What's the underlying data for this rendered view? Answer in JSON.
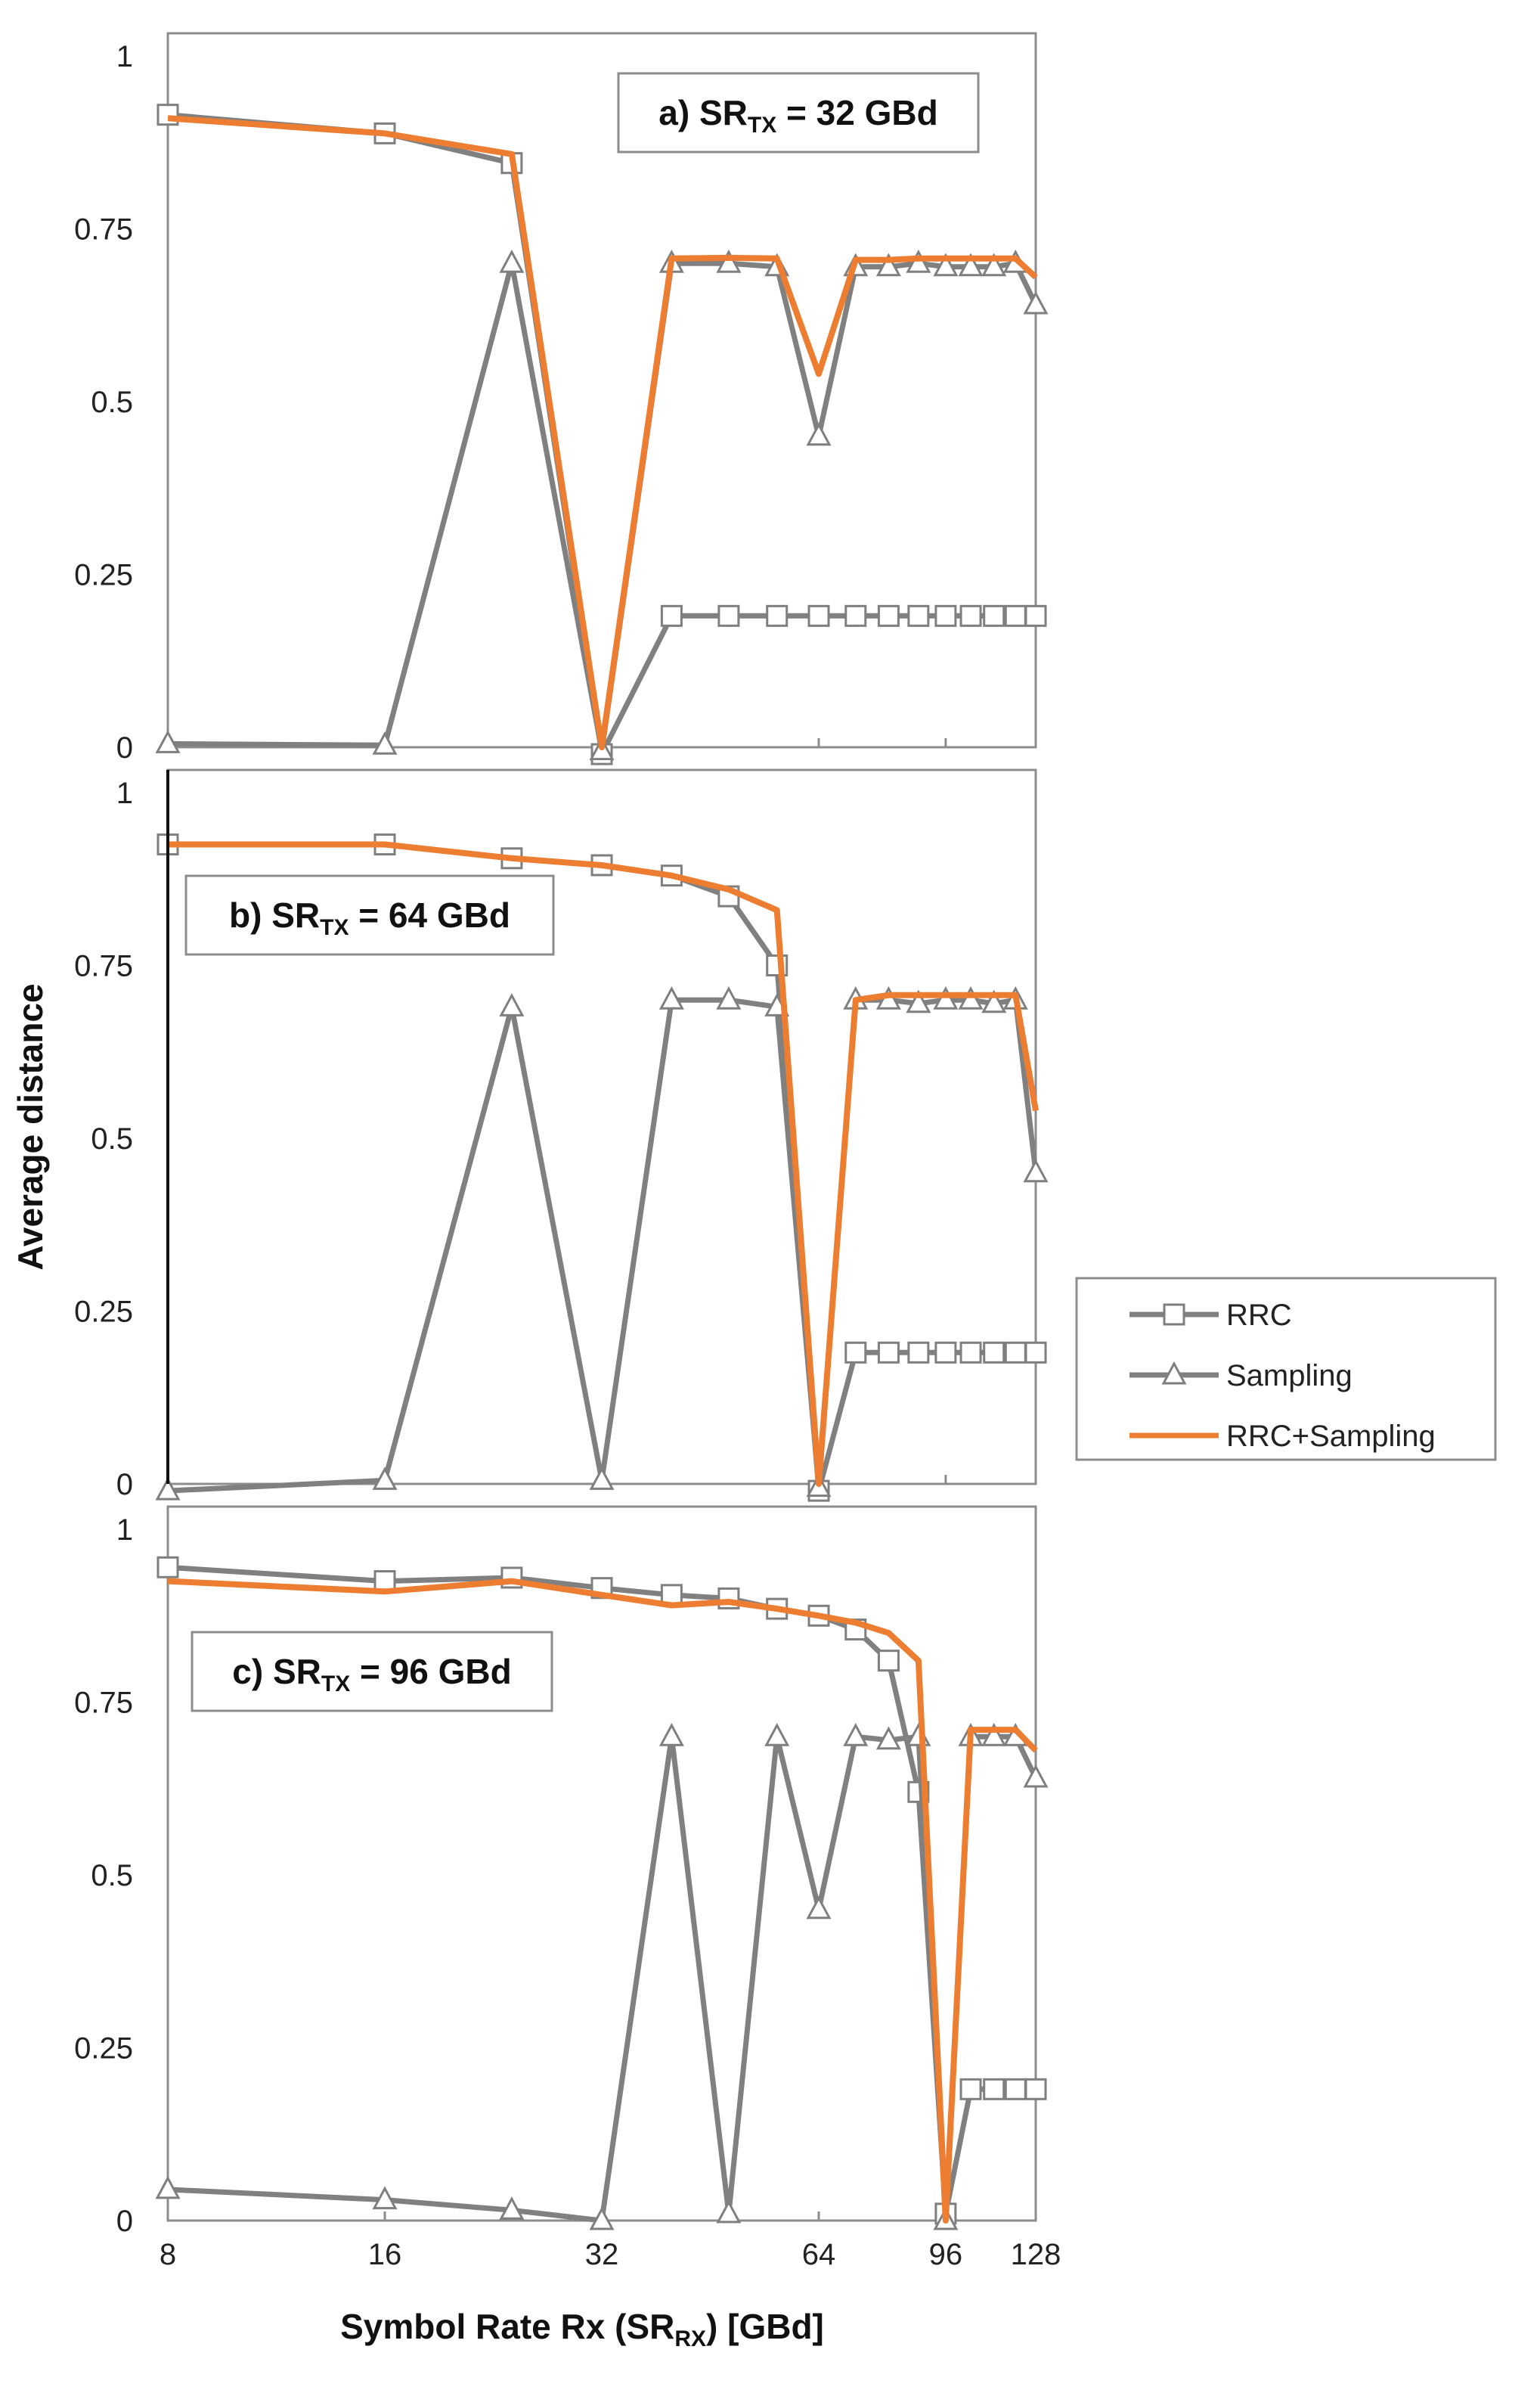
{
  "chart_data": {
    "type": "line",
    "ylabel": "Average distance",
    "xlabel": {
      "main": "Symbol Rate Rx (SR",
      "sub": "RX",
      "tail": ") [GBd]"
    },
    "x_ticks": [
      8,
      16,
      32,
      64,
      96,
      128
    ],
    "y_ticks": [
      {
        "value": 0,
        "label": "0"
      },
      {
        "value": 0.25,
        "label": "0.25"
      },
      {
        "value": 0.5,
        "label": "0.5"
      },
      {
        "value": 0.75,
        "label": "0.75"
      },
      {
        "value": 1,
        "label": "1"
      }
    ],
    "x_scale": "log2",
    "xlim": [
      8,
      128
    ],
    "ylim": [
      0,
      1
    ],
    "legend": {
      "placement": "right",
      "items": [
        {
          "name": "RRC",
          "marker": "square",
          "color": "#808080"
        },
        {
          "name": "Sampling",
          "marker": "triangle",
          "color": "#808080"
        },
        {
          "name": "RRC+Sampling",
          "marker": "none",
          "color": "#ed7d31"
        }
      ]
    },
    "panels": [
      {
        "title": {
          "prefix": "a) SR",
          "sub": "TX",
          "suffix": " = 32 GBd"
        },
        "title_placement": "top-right",
        "series": [
          {
            "name": "RRC",
            "marker": "square",
            "color": "#808080",
            "x": [
              8,
              16,
              24,
              32,
              40,
              48,
              56,
              64,
              72,
              80,
              88,
              96,
              104,
              112,
              120,
              128
            ],
            "y": [
              0.915,
              0.888,
              0.845,
              -0.01,
              0.19,
              0.19,
              0.19,
              0.19,
              0.19,
              0.19,
              0.19,
              0.19,
              0.19,
              0.19,
              0.19,
              0.19
            ]
          },
          {
            "name": "Sampling",
            "marker": "triangle",
            "color": "#808080",
            "x": [
              8,
              16,
              24,
              32,
              40,
              48,
              56,
              64,
              72,
              80,
              88,
              96,
              104,
              112,
              120,
              128
            ],
            "y": [
              0.005,
              0.003,
              0.7,
              -0.005,
              0.7,
              0.7,
              0.695,
              0.45,
              0.695,
              0.695,
              0.7,
              0.695,
              0.695,
              0.695,
              0.7,
              0.64
            ]
          },
          {
            "name": "RRC+Sampling",
            "marker": "none",
            "color": "#ed7d31",
            "x": [
              8,
              16,
              24,
              32,
              40,
              48,
              56,
              64,
              72,
              80,
              88,
              96,
              104,
              112,
              120,
              128
            ],
            "y": [
              0.91,
              0.888,
              0.858,
              0.0,
              0.707,
              0.708,
              0.707,
              0.54,
              0.705,
              0.705,
              0.707,
              0.707,
              0.707,
              0.707,
              0.707,
              0.68
            ]
          }
        ]
      },
      {
        "title": {
          "prefix": "b) SR",
          "sub": "TX",
          "suffix": " = 64 GBd"
        },
        "title_placement": "top-left",
        "series": [
          {
            "name": "RRC",
            "marker": "square",
            "color": "#808080",
            "x": [
              8,
              16,
              24,
              32,
              40,
              48,
              56,
              64,
              72,
              80,
              88,
              96,
              104,
              112,
              120,
              128
            ],
            "y": [
              0.925,
              0.925,
              0.905,
              0.895,
              0.88,
              0.85,
              0.75,
              -0.01,
              0.19,
              0.19,
              0.19,
              0.19,
              0.19,
              0.19,
              0.19,
              0.19
            ]
          },
          {
            "name": "Sampling",
            "marker": "triangle",
            "color": "#808080",
            "x": [
              8,
              16,
              24,
              32,
              40,
              48,
              56,
              64,
              72,
              80,
              88,
              96,
              104,
              112,
              120,
              128
            ],
            "y": [
              -0.01,
              0.005,
              0.69,
              0.005,
              0.7,
              0.7,
              0.69,
              -0.005,
              0.7,
              0.7,
              0.695,
              0.7,
              0.7,
              0.695,
              0.7,
              0.45
            ]
          },
          {
            "name": "RRC+Sampling",
            "marker": "none",
            "color": "#ed7d31",
            "x": [
              8,
              16,
              24,
              32,
              40,
              48,
              56,
              64,
              72,
              80,
              88,
              96,
              104,
              112,
              120,
              128
            ],
            "y": [
              0.925,
              0.925,
              0.905,
              0.895,
              0.88,
              0.86,
              0.83,
              0.0,
              0.7,
              0.707,
              0.707,
              0.707,
              0.707,
              0.707,
              0.707,
              0.54
            ]
          }
        ]
      },
      {
        "title": {
          "prefix": "c) SR",
          "sub": "TX",
          "suffix": " = 96 GBd"
        },
        "title_placement": "left",
        "series": [
          {
            "name": "RRC",
            "marker": "square",
            "color": "#808080",
            "x": [
              8,
              16,
              24,
              32,
              40,
              48,
              56,
              64,
              72,
              80,
              88,
              96,
              104,
              112,
              120,
              128
            ],
            "y": [
              0.945,
              0.925,
              0.93,
              0.915,
              0.905,
              0.9,
              0.885,
              0.875,
              0.855,
              0.81,
              0.62,
              0.01,
              0.19,
              0.19,
              0.19,
              0.19
            ]
          },
          {
            "name": "Sampling",
            "marker": "triangle",
            "color": "#808080",
            "x": [
              8,
              16,
              24,
              32,
              40,
              48,
              56,
              64,
              72,
              80,
              88,
              96,
              104,
              112,
              120,
              128
            ],
            "y": [
              0.045,
              0.03,
              0.015,
              0.0,
              0.7,
              0.01,
              0.7,
              0.45,
              0.7,
              0.695,
              0.7,
              0.0,
              0.7,
              0.7,
              0.7,
              0.64
            ]
          },
          {
            "name": "RRC+Sampling",
            "marker": "none",
            "color": "#ed7d31",
            "x": [
              8,
              16,
              24,
              32,
              40,
              48,
              56,
              64,
              72,
              80,
              88,
              96,
              104,
              112,
              120,
              128
            ],
            "y": [
              0.925,
              0.91,
              0.925,
              0.905,
              0.89,
              0.895,
              0.885,
              0.875,
              0.865,
              0.85,
              0.81,
              0.0,
              0.71,
              0.71,
              0.71,
              0.68
            ]
          }
        ]
      }
    ]
  }
}
